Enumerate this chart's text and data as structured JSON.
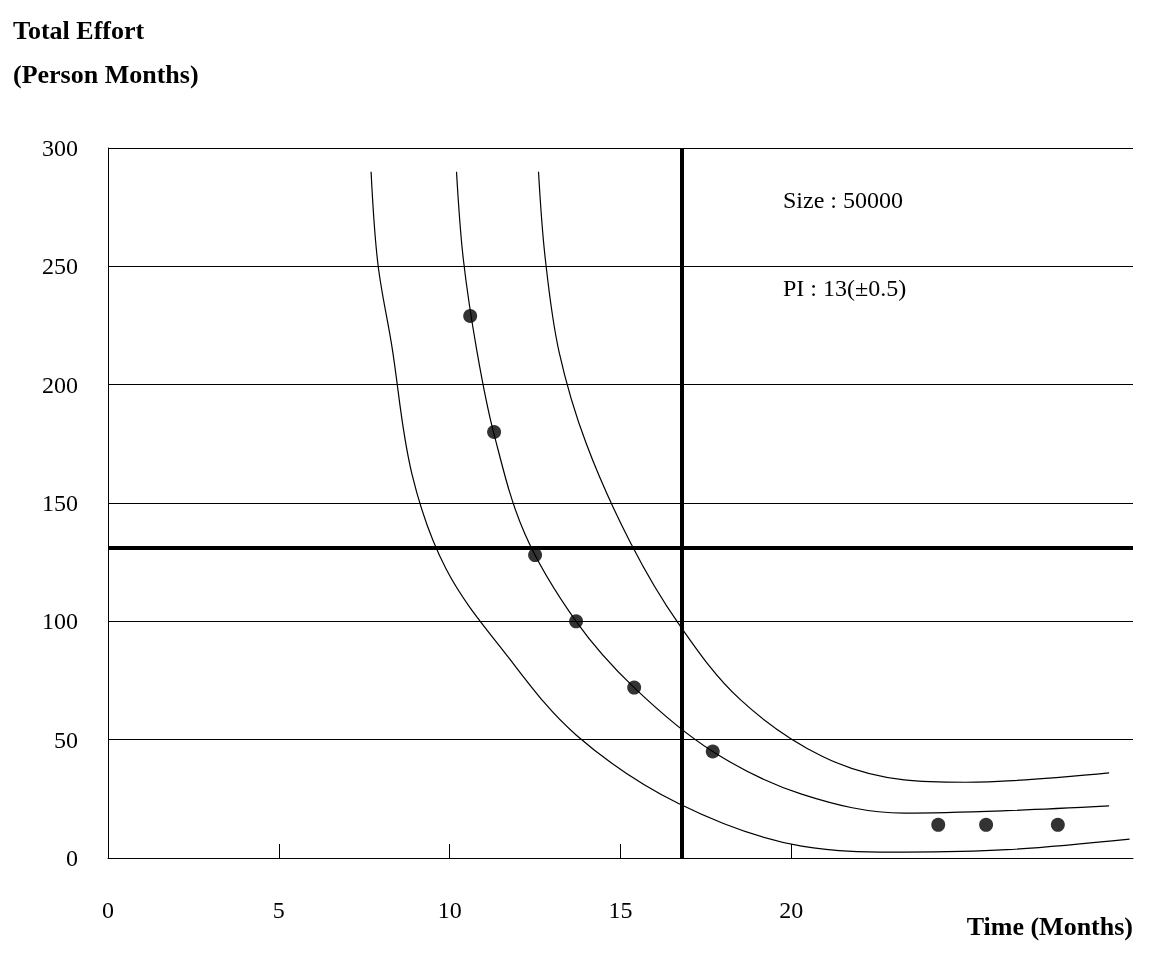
{
  "chart_data": {
    "type": "line",
    "xlabel": "Time (Months)",
    "ylabel": "Total Effort (Person Months)",
    "xlim": [
      0,
      30
    ],
    "xticks": [
      0,
      5,
      10,
      15,
      20
    ],
    "ylim": [
      0,
      300
    ],
    "yticks": [
      0,
      50,
      100,
      150,
      200,
      250,
      300
    ],
    "grid": "y",
    "series": [
      {
        "type": "line",
        "color": "#000000",
        "marker": "none",
        "x": [
          7.7,
          7.9,
          8.3,
          8.9,
          9.9,
          11.6,
          13.7,
          16.7,
          20.3,
          23.3,
          26.3,
          29.9
        ],
        "values": [
          290,
          251,
          217,
          162,
          122,
          87,
          52,
          23,
          5,
          2.5,
          3.5,
          8
        ]
      },
      {
        "type": "line",
        "color": "#000000",
        "marker": "none",
        "x": [
          10.2,
          10.4,
          10.8,
          11.3,
          12.2,
          13.7,
          15.4,
          17.7,
          20.3,
          23.3,
          26.3,
          29.3
        ],
        "values": [
          290,
          253,
          214,
          179,
          137,
          100,
          72,
          45,
          27,
          19,
          20,
          22
        ]
      },
      {
        "type": "line",
        "color": "#000000",
        "marker": "none",
        "x": [
          12.6,
          12.8,
          13.2,
          14.0,
          15.3,
          16.7,
          18.5,
          20.9,
          23.3,
          25.1,
          29.3
        ],
        "values": [
          290,
          253,
          214,
          175,
          133,
          99,
          67,
          43,
          33,
          32,
          36
        ]
      },
      {
        "type": "scatter",
        "color": "#000000",
        "marker": "circle",
        "x": [
          10.6,
          11.3,
          12.5,
          13.7,
          15.4,
          17.7,
          24.3,
          25.7,
          27.8
        ],
        "values": [
          229,
          180,
          128,
          100,
          72,
          45,
          14,
          14,
          14
        ]
      }
    ],
    "ref_lines": [
      {
        "axis": "x",
        "value": 16.8,
        "label": null,
        "color": "#000000"
      },
      {
        "axis": "y",
        "value": 131,
        "label": null,
        "color": "#000000"
      }
    ],
    "annotations": [
      "Size : 50000",
      "PI : 13(±0.5)"
    ]
  }
}
